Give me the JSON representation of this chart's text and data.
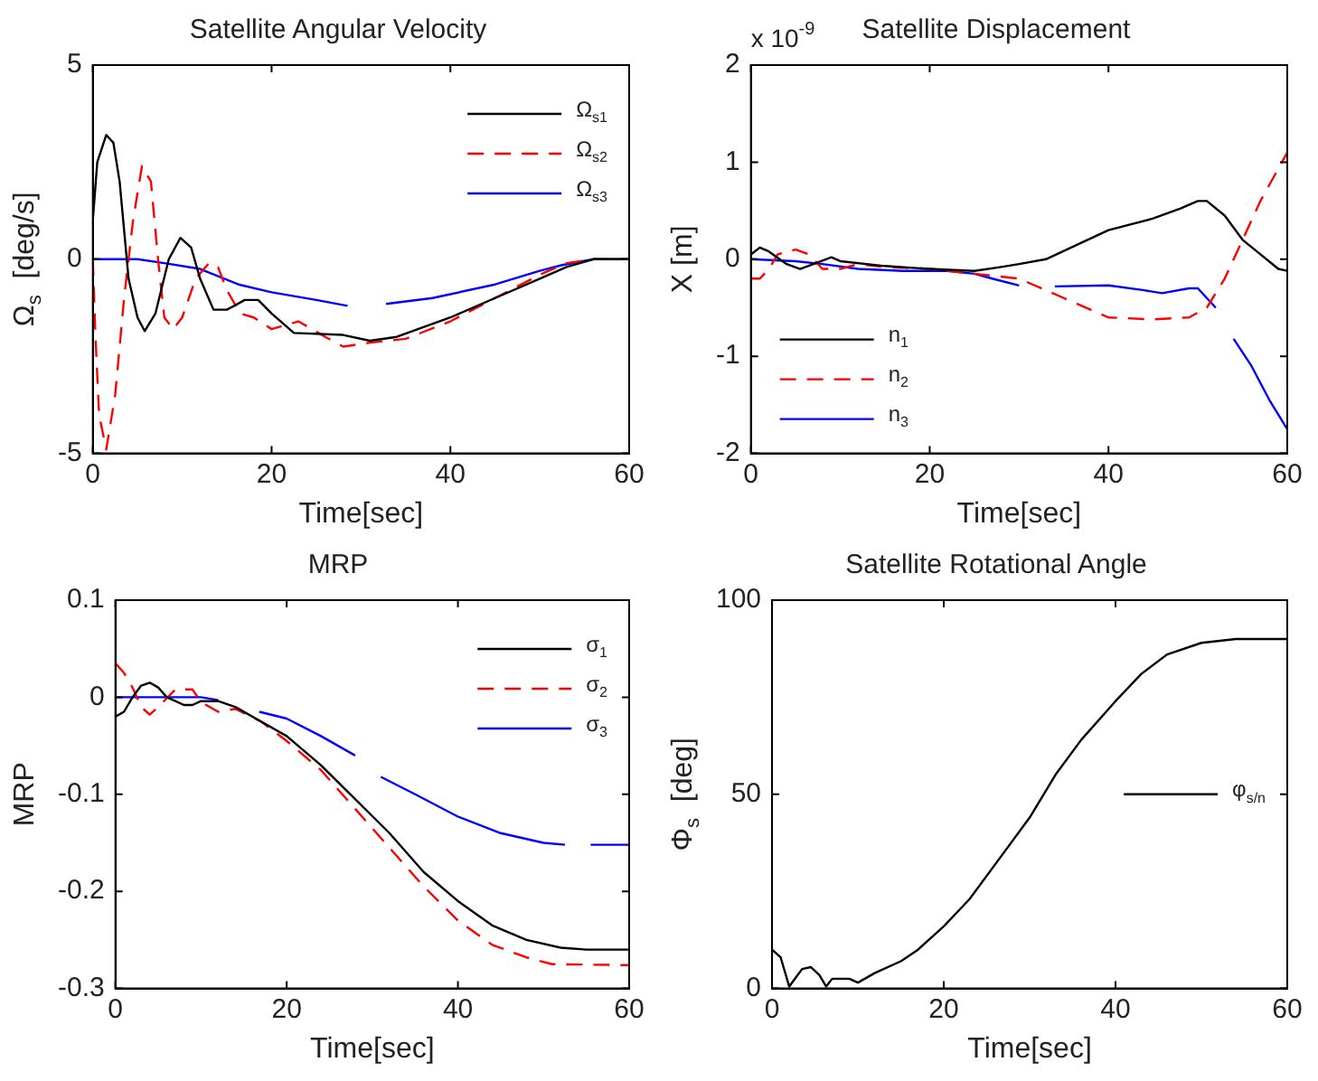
{
  "chart_data": [
    {
      "type": "line",
      "title": "Satellite Angular Velocity",
      "xlabel": "Time[sec]",
      "ylabel": "Ω$_{s}$  [deg/s]",
      "xlim": [
        0,
        60
      ],
      "xticks": [
        0,
        20,
        40,
        60
      ],
      "ylim": [
        -5,
        5
      ],
      "yticks": [
        -5,
        0,
        5
      ],
      "grid": false,
      "legend": "top right",
      "marker": "none",
      "series": [
        {
          "name": "Ω$_{s1}$",
          "color": "#000000",
          "line_style": "solid",
          "x": [
            0,
            0.5,
            1.5,
            2.3,
            3,
            4,
            5,
            5.8,
            7,
            8.5,
            9.8,
            11,
            12,
            13.5,
            15,
            17,
            18.5,
            20,
            22.5,
            28,
            31,
            34,
            40,
            45,
            50,
            53,
            56,
            60
          ],
          "values": [
            1,
            2.5,
            3.2,
            3,
            2,
            -0.5,
            -1.5,
            -1.85,
            -1.4,
            0,
            0.55,
            0.3,
            -0.5,
            -1.3,
            -1.3,
            -1.05,
            -1.05,
            -1.4,
            -1.9,
            -1.95,
            -2.1,
            -2,
            -1.5,
            -1,
            -0.5,
            -0.2,
            0,
            0
          ]
        },
        {
          "name": "Ω$_{s2}$",
          "color": "#ff0000",
          "line_style": "dashed",
          "x": [
            0,
            0.3,
            0.7,
            1.5,
            2.5,
            3.5,
            4.5,
            5.5,
            6.5,
            7.3,
            8,
            9,
            10,
            11.5,
            13,
            14,
            15,
            16.5,
            18,
            20,
            23,
            26,
            28,
            31,
            35,
            40,
            45,
            50,
            53,
            56,
            60
          ],
          "values": [
            0,
            -2,
            -4,
            -4.9,
            -3.5,
            -1,
            1,
            2.4,
            2,
            0,
            -1.5,
            -1.8,
            -1.5,
            -0.5,
            -0.1,
            -0.2,
            -0.8,
            -1.4,
            -1.5,
            -1.8,
            -1.6,
            -2,
            -2.25,
            -2.15,
            -2.05,
            -1.6,
            -1,
            -0.4,
            -0.1,
            0,
            0
          ]
        },
        {
          "name": "Ω$_{s3}$",
          "color": "#0000ff",
          "line_style": "solid",
          "x": [
            0,
            5,
            8,
            12,
            16.3,
            20,
            25,
            28.5,
            30,
            32.8,
            38,
            45,
            50,
            52.5,
            56,
            60
          ],
          "values": [
            0,
            0,
            -0.1,
            -0.25,
            -0.65,
            -0.85,
            -1.05,
            -1.2,
            null,
            -1.15,
            -1,
            -0.65,
            -0.3,
            -0.15,
            0,
            0
          ]
        }
      ]
    },
    {
      "type": "line",
      "title": "Satellite Displacement",
      "annotations": [
        "x 10$^{-9}$"
      ],
      "xlabel": "Time[sec]",
      "ylabel": "X [m]",
      "xlim": [
        0,
        60
      ],
      "xticks": [
        0,
        20,
        40,
        60
      ],
      "ylim": [
        -2,
        2
      ],
      "yticks": [
        -2,
        -1,
        0,
        1,
        2
      ],
      "grid": false,
      "legend": "bottom left",
      "marker": "none",
      "series": [
        {
          "name": "n$_{1}$",
          "color": "#000000",
          "line_style": "solid",
          "x": [
            0,
            1,
            2,
            4,
            5.5,
            7,
            9,
            10,
            15,
            20,
            25,
            28,
            30,
            33,
            40,
            45,
            48,
            50,
            51,
            53,
            55,
            57,
            59,
            60
          ],
          "values": [
            0.05,
            0.12,
            0.08,
            -0.05,
            -0.1,
            -0.05,
            0.02,
            -0.02,
            -0.07,
            -0.1,
            -0.12,
            -0.08,
            -0.05,
            0,
            0.3,
            0.42,
            0.52,
            0.6,
            0.6,
            0.45,
            0.2,
            0.05,
            -0.1,
            -0.12
          ]
        },
        {
          "name": "n$_{2}$",
          "color": "#ff0000",
          "line_style": "dashed",
          "x": [
            0,
            1,
            2,
            3,
            5,
            6.5,
            8,
            10,
            12,
            15,
            20,
            25,
            30,
            35,
            40,
            45,
            49,
            51,
            53,
            55,
            57,
            60
          ],
          "values": [
            -0.2,
            -0.2,
            -0.1,
            0.05,
            0.1,
            0.05,
            -0.1,
            -0.1,
            -0.05,
            -0.08,
            -0.1,
            -0.15,
            -0.2,
            -0.4,
            -0.6,
            -0.62,
            -0.6,
            -0.5,
            -0.2,
            0.2,
            0.6,
            1.1
          ]
        },
        {
          "name": "n$_{3}$",
          "color": "#0000ff",
          "line_style": "solid",
          "x": [
            0,
            5,
            8,
            12,
            17,
            22,
            25,
            27,
            30,
            31,
            34,
            40,
            44,
            46,
            49,
            50,
            51,
            52,
            53,
            54,
            56,
            58,
            60
          ],
          "values": [
            0,
            -0.02,
            -0.05,
            -0.1,
            -0.12,
            -0.12,
            -0.15,
            -0.2,
            -0.27,
            null,
            -0.28,
            -0.27,
            -0.32,
            -0.35,
            -0.3,
            -0.3,
            -0.4,
            -0.5,
            null,
            -0.82,
            -1.1,
            -1.45,
            -1.75
          ]
        }
      ]
    },
    {
      "type": "line",
      "title": "MRP",
      "xlabel": "Time[sec]",
      "ylabel": "MRP",
      "xlim": [
        0,
        60
      ],
      "xticks": [
        0,
        20,
        40,
        60
      ],
      "ylim": [
        -0.3,
        0.1
      ],
      "yticks": [
        -0.3,
        -0.2,
        -0.1,
        0,
        0.1
      ],
      "grid": false,
      "legend": "top right",
      "marker": "none",
      "series": [
        {
          "name": "σ$_{1}$",
          "color": "#000000",
          "line_style": "solid",
          "x": [
            0,
            1,
            2,
            3,
            4,
            5,
            6,
            8,
            9,
            10,
            12,
            14,
            17,
            20,
            24,
            28,
            32,
            36,
            40,
            44,
            48,
            52,
            55,
            60
          ],
          "values": [
            -0.02,
            -0.015,
            0,
            0.012,
            0.015,
            0.01,
            0,
            -0.008,
            -0.008,
            -0.004,
            -0.004,
            -0.01,
            -0.025,
            -0.04,
            -0.07,
            -0.105,
            -0.14,
            -0.18,
            -0.21,
            -0.235,
            -0.25,
            -0.258,
            -0.26,
            -0.26
          ]
        },
        {
          "name": "σ$_{2}$",
          "color": "#ff0000",
          "line_style": "dashed",
          "x": [
            0,
            1,
            2,
            3,
            4,
            5,
            7,
            9,
            10,
            12,
            14,
            17,
            20,
            24,
            28,
            32,
            36,
            40,
            44,
            48,
            51,
            60
          ],
          "values": [
            0.035,
            0.025,
            0.01,
            -0.01,
            -0.018,
            -0.01,
            0.008,
            0.008,
            -0.005,
            -0.015,
            -0.012,
            -0.025,
            -0.045,
            -0.075,
            -0.115,
            -0.155,
            -0.195,
            -0.23,
            -0.255,
            -0.268,
            -0.275,
            -0.276
          ]
        },
        {
          "name": "σ$_{3}$",
          "color": "#0000ff",
          "line_style": "solid",
          "x": [
            0,
            10,
            12,
            14,
            16.8,
            20,
            24,
            28,
            29.5,
            31,
            35,
            40,
            45,
            50,
            52.5,
            54,
            55.5,
            60
          ],
          "values": [
            0,
            0,
            -0.003,
            null,
            -0.015,
            -0.022,
            -0.04,
            -0.06,
            null,
            -0.082,
            -0.1,
            -0.123,
            -0.14,
            -0.15,
            -0.152,
            null,
            -0.152,
            -0.152
          ]
        }
      ]
    },
    {
      "type": "line",
      "title": "Satellite Rotational Angle",
      "xlabel": "Time[sec]",
      "ylabel": "Φ$_{s}$  [deg]",
      "xlim": [
        0,
        60
      ],
      "xticks": [
        0,
        20,
        40,
        60
      ],
      "ylim": [
        0,
        100
      ],
      "yticks": [
        0,
        50,
        100
      ],
      "grid": false,
      "legend": "right",
      "marker": "none",
      "series": [
        {
          "name": "φ$_{s/n}$",
          "color": "#000000",
          "line_style": "solid",
          "x": [
            0,
            1,
            2,
            2.5,
            3.5,
            4.5,
            5.5,
            6.3,
            7,
            9,
            10,
            12,
            15,
            17,
            20,
            23,
            26,
            30,
            33,
            36,
            40,
            43,
            46,
            50,
            54,
            60
          ],
          "values": [
            10,
            8,
            0.5,
            2,
            5,
            5.5,
            3.5,
            0.5,
            2.5,
            2.5,
            1.5,
            4,
            7,
            10,
            16,
            23,
            32,
            44,
            55,
            64,
            74,
            81,
            86,
            89,
            90,
            90
          ]
        }
      ]
    }
  ]
}
